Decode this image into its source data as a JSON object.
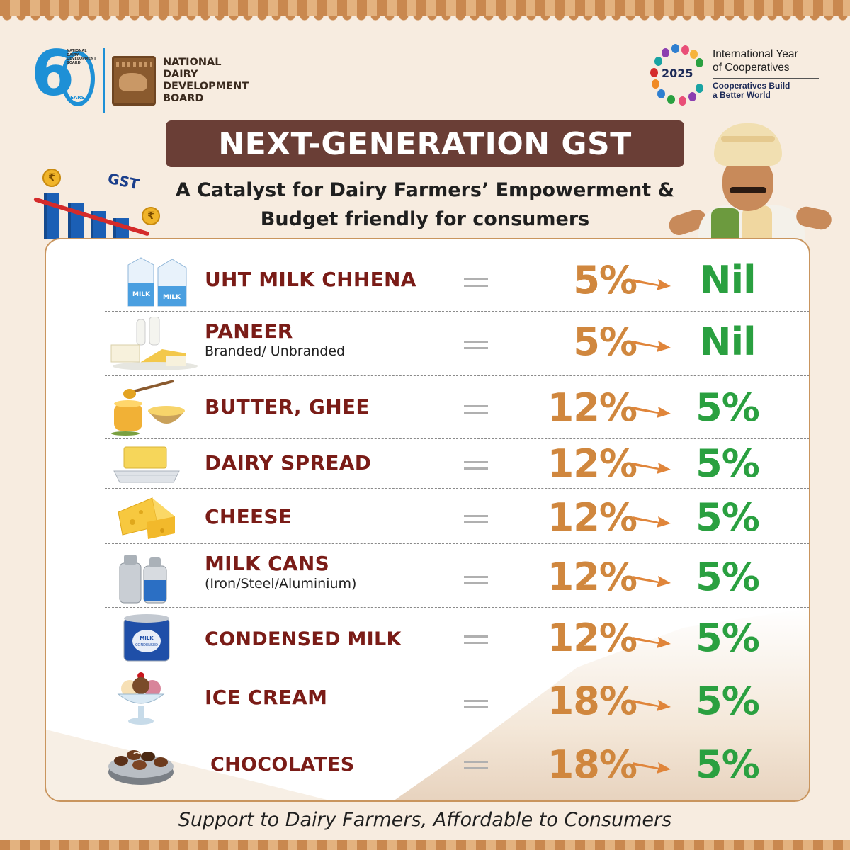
{
  "header": {
    "nddb_mini": "NATIONAL DAIRY DEVELOPMENT BOARD",
    "nddb_years": "YEARS",
    "nddb_line1": "NATIONAL",
    "nddb_line2": "DAIRY",
    "nddb_line3": "DEVELOPMENT",
    "nddb_line4": "BOARD",
    "iyc_year": "2025",
    "iyc_title_line1": "International Year",
    "iyc_title_line2": "of Cooperatives",
    "iyc_tag_line1": "Cooperatives Build",
    "iyc_tag_line2": "a Better World"
  },
  "title": "NEXT-GENERATION GST",
  "subtitle_line1": "A Catalyst for Dairy Farmers’ Empowerment &",
  "subtitle_line2": "Budget friendly for consumers",
  "gst_graphic": {
    "label": "GST",
    "coin_symbol": "₹"
  },
  "items": [
    {
      "name": "UHT MILK CHHENA",
      "sub": "",
      "old": "5%",
      "new": "Nil",
      "icon": "milk-carton-icon"
    },
    {
      "name": "PANEER",
      "sub": "Branded/ Unbranded",
      "old": "5%",
      "new": "Nil",
      "icon": "paneer-icon"
    },
    {
      "name": "BUTTER, GHEE",
      "sub": "",
      "old": "12%",
      "new": "5%",
      "icon": "ghee-jar-icon"
    },
    {
      "name": "DAIRY SPREAD",
      "sub": "",
      "old": "12%",
      "new": "5%",
      "icon": "butter-tray-icon"
    },
    {
      "name": "CHEESE",
      "sub": "",
      "old": "12%",
      "new": "5%",
      "icon": "cheese-icon"
    },
    {
      "name": "MILK CANS",
      "sub": "(Iron/Steel/Aluminium)",
      "old": "12%",
      "new": "5%",
      "icon": "milk-can-icon"
    },
    {
      "name": "CONDENSED MILK",
      "sub": "",
      "old": "12%",
      "new": "5%",
      "icon": "condensed-milk-can-icon",
      "can_label_1": "MILK",
      "can_label_2": "CONDENSED"
    },
    {
      "name": "ICE CREAM",
      "sub": "",
      "old": "18%",
      "new": "5%",
      "icon": "ice-cream-sundae-icon"
    },
    {
      "name": "CHOCOLATES",
      "sub": "",
      "old": "18%",
      "new": "5%",
      "icon": "chocolates-bowl-icon"
    }
  ],
  "footer": "Support to Dairy Farmers, Affordable to Consumers",
  "colors": {
    "banner": "#6a3e36",
    "item_name": "#7a1c17",
    "old_rate": "#d0873e",
    "new_rate": "#2aa040",
    "arrow": "#e0853a",
    "card_border": "#c9955e",
    "background": "#f7ece0"
  }
}
